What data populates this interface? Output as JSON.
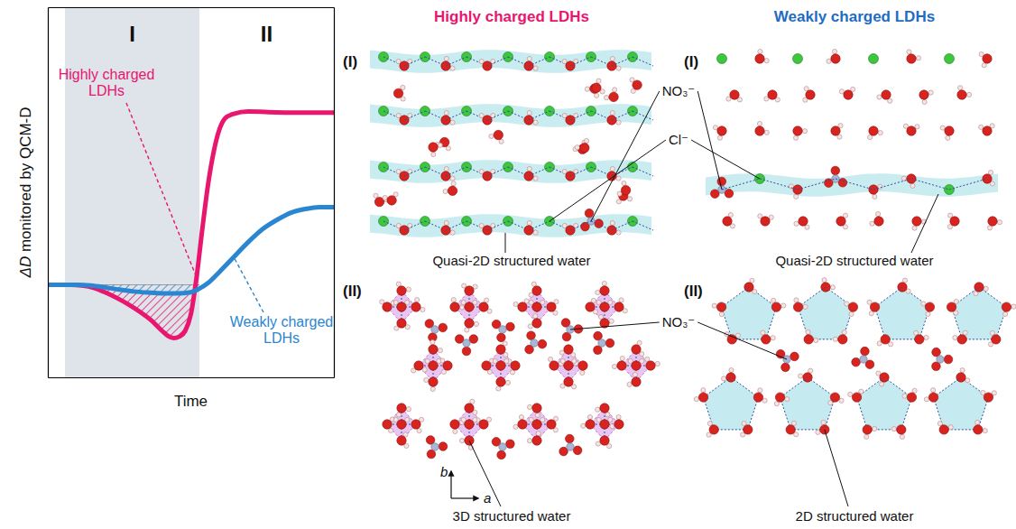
{
  "chart_data": {
    "type": "line",
    "x_label": "Time",
    "y_label": "ΔD monitored by QCM-D",
    "xlim": [
      0,
      100
    ],
    "ylim": [
      0,
      100
    ],
    "tick_labels": false,
    "baseline": 25,
    "regions": [
      {
        "label": "I",
        "start": 6,
        "end": 53
      },
      {
        "label": "II",
        "start": 53,
        "end": 100
      }
    ],
    "series": [
      {
        "name": "Highly charged LDHs",
        "color": "#e8166e",
        "x": [
          0,
          4,
          8,
          12,
          16,
          20,
          24,
          28,
          32,
          36,
          40,
          42,
          44,
          46,
          48,
          50,
          52,
          54,
          56,
          58,
          60,
          62,
          65,
          70,
          80,
          90,
          100
        ],
        "values": [
          25,
          25,
          25,
          24.8,
          24.2,
          23,
          21.5,
          19.8,
          17.8,
          15.5,
          12.5,
          11.2,
          10.6,
          11,
          12.5,
          17,
          27,
          40,
          52,
          61,
          67,
          70,
          71.2,
          71.8,
          71.6,
          71.5,
          71.5
        ]
      },
      {
        "name": "Weakly charged LDHs",
        "color": "#2a86d0",
        "x": [
          0,
          5,
          10,
          15,
          20,
          25,
          30,
          35,
          40,
          45,
          50,
          53,
          56,
          60,
          65,
          70,
          75,
          80,
          85,
          90,
          95,
          100
        ],
        "values": [
          25,
          25,
          25,
          24.8,
          24.3,
          23.7,
          23.2,
          22.9,
          22.7,
          22.7,
          23,
          24,
          25.5,
          28.5,
          32.5,
          36.5,
          40,
          42.5,
          44.5,
          45.5,
          46,
          46
        ]
      }
    ]
  },
  "panels": {
    "columns": [
      {
        "title": "Highly charged LDHs",
        "color": "#e8166e"
      },
      {
        "title": "Weakly charged LDHs",
        "color": "#1f6cc4"
      }
    ],
    "rows": [
      {
        "label": "(I)",
        "captions": [
          "Quasi-2D structured water",
          "Quasi-2D structured water"
        ],
        "callouts": [
          "NO₃⁻",
          "Cl⁻"
        ]
      },
      {
        "label": "(II)",
        "captions": [
          "3D structured water",
          "2D structured water"
        ],
        "callouts": [
          "NO₃⁻"
        ]
      }
    ]
  },
  "axes_indicator": {
    "x": "a",
    "y": "b"
  }
}
